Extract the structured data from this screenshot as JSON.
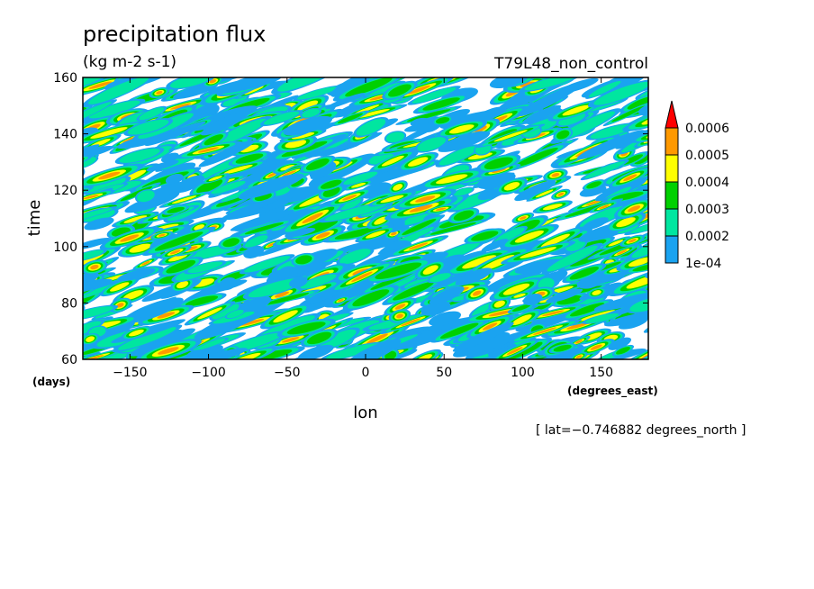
{
  "chart_data": {
    "type": "heatmap",
    "title": "precipitation flux",
    "units": "(kg m-2 s-1)",
    "experiment": "T79L48_non_control",
    "xlabel": "lon",
    "x_unit": "(degrees_east)",
    "ylabel": "time",
    "y_unit": "(days)",
    "xlim": [
      -180,
      180
    ],
    "ylim": [
      60,
      160
    ],
    "x_ticks": [
      -150,
      -100,
      -50,
      0,
      50,
      100,
      150
    ],
    "y_ticks": [
      60,
      80,
      100,
      120,
      140,
      160
    ],
    "x_tick_labels": [
      "−150",
      "−100",
      "−50",
      "0",
      "50",
      "100",
      "150"
    ],
    "y_tick_labels": [
      "60",
      "80",
      "100",
      "120",
      "140",
      "160"
    ],
    "annotation": "[ lat=−0.746882 degrees_north ]",
    "colorbar": {
      "levels": [
        0.0001,
        0.0002,
        0.0003,
        0.0004,
        0.0005,
        0.0006
      ],
      "labels": [
        "1e-04",
        "0.0002",
        "0.0003",
        "0.0004",
        "0.0005",
        "0.0006"
      ],
      "colors": [
        "#1aa3f0",
        "#00e6a0",
        "#00d000",
        "#ffff00",
        "#ff9900",
        "#ff0000"
      ]
    }
  }
}
